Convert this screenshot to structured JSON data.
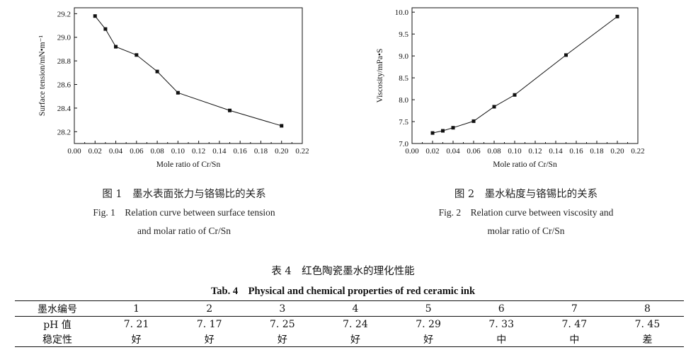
{
  "chart_data": [
    {
      "type": "line",
      "xlabel": "Mole ratio of Cr/Sn",
      "ylabel": "Surface tension/mN•m⁻¹",
      "xlim": [
        0.0,
        0.22
      ],
      "ylim": [
        28.1,
        29.25
      ],
      "xticks": [
        "0.00",
        "0.02",
        "0.04",
        "0.06",
        "0.08",
        "0.10",
        "0.12",
        "0.14",
        "0.16",
        "0.18",
        "0.20",
        "0.22"
      ],
      "yticks": [
        "28.2",
        "28.4",
        "28.6",
        "28.8",
        "29.0",
        "29.2"
      ],
      "x": [
        0.02,
        0.03,
        0.04,
        0.06,
        0.08,
        0.1,
        0.15,
        0.2
      ],
      "y": [
        29.18,
        29.07,
        28.92,
        28.85,
        28.71,
        28.53,
        28.38,
        28.25
      ],
      "grid": false
    },
    {
      "type": "line",
      "xlabel": "Mole ratio of Cr/Sn",
      "ylabel": "Viscosity/mPa•S",
      "xlim": [
        0.0,
        0.22
      ],
      "ylim": [
        7.0,
        10.1
      ],
      "xticks": [
        "0.00",
        "0.02",
        "0.04",
        "0.06",
        "0.08",
        "0.10",
        "0.12",
        "0.14",
        "0.16",
        "0.18",
        "0.20",
        "0.22"
      ],
      "yticks": [
        "7.0",
        "7.5",
        "8.0",
        "8.5",
        "9.0",
        "9.5",
        "10.0"
      ],
      "x": [
        0.02,
        0.03,
        0.04,
        0.06,
        0.08,
        0.1,
        0.15,
        0.2
      ],
      "y": [
        7.24,
        7.29,
        7.36,
        7.51,
        7.84,
        8.11,
        9.02,
        9.9
      ],
      "grid": false
    }
  ],
  "figures": {
    "fig1": {
      "zh": "图 1　墨水表面张力与铬锡比的关系",
      "en1": "Fig. 1　Relation curve between surface tension",
      "en2": "and molar ratio of Cr/Sn"
    },
    "fig2": {
      "zh": "图 2　墨水粘度与铬锡比的关系",
      "en1": "Fig. 2　Relation curve between viscosity and",
      "en2": "molar ratio of Cr/Sn"
    }
  },
  "table": {
    "title_zh": "表 4　红色陶瓷墨水的理化性能",
    "title_en": "Tab. 4　Physical and chemical properties of red ceramic ink",
    "header": [
      "墨水编号",
      "1",
      "2",
      "3",
      "4",
      "5",
      "6",
      "7",
      "8"
    ],
    "rows": [
      [
        "pH 值",
        "7. 21",
        "7. 17",
        "7. 25",
        "7. 24",
        "7. 29",
        "7. 33",
        "7. 47",
        "7. 45"
      ],
      [
        "稳定性",
        "好",
        "好",
        "好",
        "好",
        "好",
        "中",
        "中",
        "差"
      ]
    ]
  }
}
